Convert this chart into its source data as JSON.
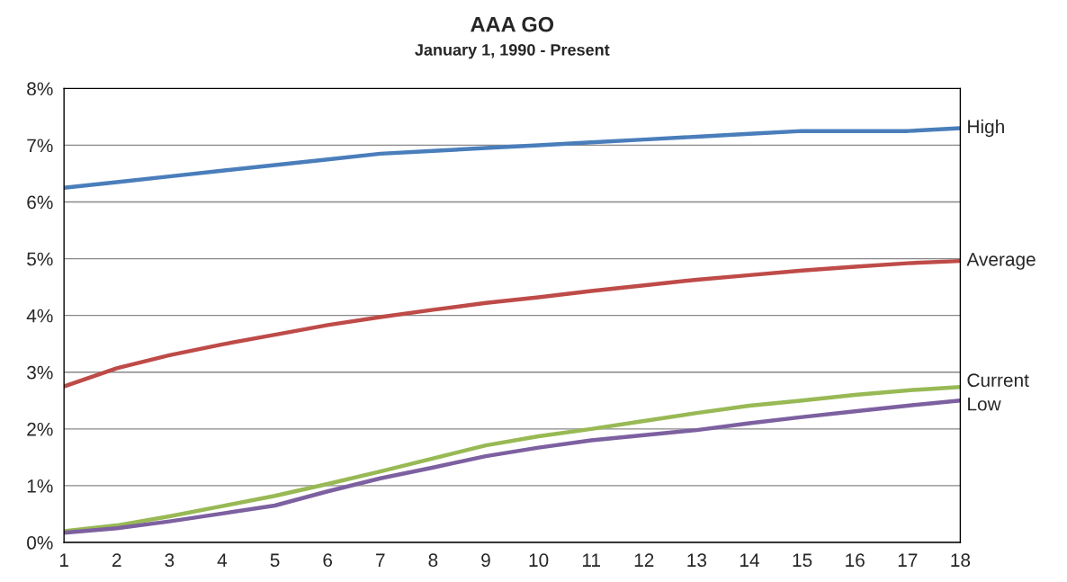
{
  "chart_data": {
    "type": "line",
    "title": "AAA GO",
    "subtitle": "January 1, 1990 - Present",
    "x": [
      1,
      2,
      3,
      4,
      5,
      6,
      7,
      8,
      9,
      10,
      11,
      12,
      13,
      14,
      15,
      16,
      17,
      18
    ],
    "xlim": [
      1,
      18
    ],
    "xticks": [
      1,
      2,
      3,
      4,
      5,
      6,
      7,
      8,
      9,
      10,
      11,
      12,
      13,
      14,
      15,
      16,
      17,
      18
    ],
    "ylim": [
      0,
      8
    ],
    "yticks": [
      {
        "value": 0,
        "label": "0%"
      },
      {
        "value": 1,
        "label": "1%"
      },
      {
        "value": 2,
        "label": "2%"
      },
      {
        "value": 3,
        "label": "3%"
      },
      {
        "value": 4,
        "label": "4%"
      },
      {
        "value": 5,
        "label": "5%"
      },
      {
        "value": 6,
        "label": "6%"
      },
      {
        "value": 7,
        "label": "7%"
      },
      {
        "value": 8,
        "label": "8%"
      }
    ],
    "grid": "y",
    "marker": "none",
    "line_style": "solid",
    "series": [
      {
        "name": "High",
        "color": "#4a7ebb",
        "values": [
          6.25,
          6.35,
          6.45,
          6.55,
          6.65,
          6.75,
          6.85,
          6.9,
          6.95,
          7.0,
          7.05,
          7.1,
          7.15,
          7.2,
          7.25,
          7.25,
          7.25,
          7.3
        ]
      },
      {
        "name": "Average",
        "color": "#be4b48",
        "values": [
          2.75,
          3.07,
          3.3,
          3.49,
          3.66,
          3.83,
          3.97,
          4.1,
          4.22,
          4.32,
          4.43,
          4.53,
          4.63,
          4.71,
          4.79,
          4.86,
          4.92,
          4.96
        ]
      },
      {
        "name": "Current",
        "color": "#98b954",
        "values": [
          0.2,
          0.3,
          0.46,
          0.64,
          0.82,
          1.03,
          1.25,
          1.48,
          1.71,
          1.87,
          2.0,
          2.14,
          2.28,
          2.41,
          2.5,
          2.6,
          2.68,
          2.74
        ]
      },
      {
        "name": "Low",
        "color": "#7d60a0",
        "values": [
          0.17,
          0.25,
          0.37,
          0.51,
          0.65,
          0.9,
          1.13,
          1.32,
          1.52,
          1.67,
          1.8,
          1.89,
          1.98,
          2.1,
          2.21,
          2.31,
          2.41,
          2.5
        ]
      }
    ]
  }
}
